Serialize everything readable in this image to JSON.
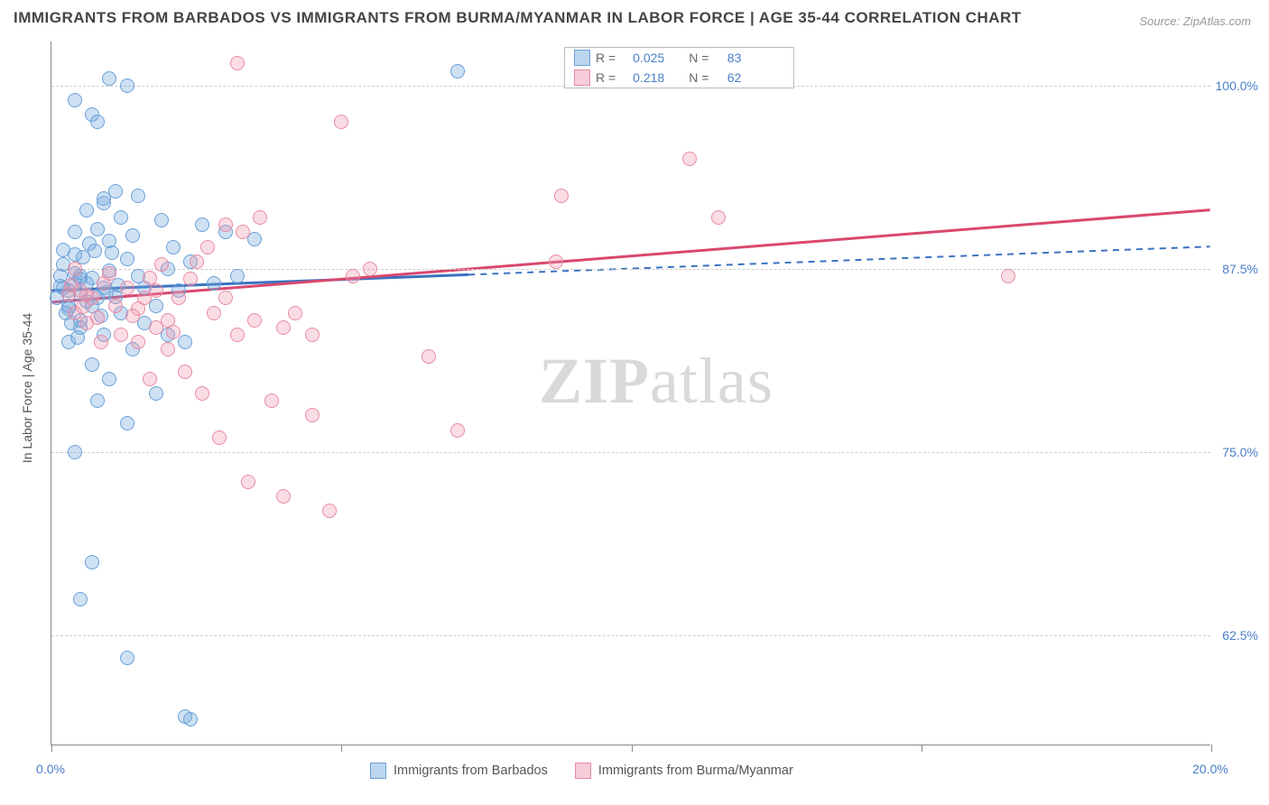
{
  "title": "IMMIGRANTS FROM BARBADOS VS IMMIGRANTS FROM BURMA/MYANMAR IN LABOR FORCE | AGE 35-44 CORRELATION CHART",
  "source": "Source: ZipAtlas.com",
  "y_axis_label": "In Labor Force | Age 35-44",
  "watermark": {
    "part1": "ZIP",
    "part2": "atlas"
  },
  "chart": {
    "type": "scatter",
    "xlim": [
      0,
      20
    ],
    "ylim": [
      55,
      103
    ],
    "x_ticks": [
      0,
      5,
      10,
      15,
      20
    ],
    "x_tick_labels": {
      "0": "0.0%",
      "20": "20.0%"
    },
    "y_ticks": [
      62.5,
      75.0,
      87.5,
      100.0
    ],
    "y_tick_labels": [
      "62.5%",
      "75.0%",
      "87.5%",
      "100.0%"
    ],
    "background_color": "#ffffff",
    "grid_color": "#cccccc",
    "axis_color": "#888888",
    "tick_label_color": "#4a7ec9",
    "marker_radius": 8,
    "marker_stroke_width": 1.5,
    "series": [
      {
        "name": "Immigrants from Barbados",
        "color_fill": "rgba(116,168,222,0.35)",
        "color_stroke": "#6aa0d8",
        "swatch_fill": "#bcd5ee",
        "swatch_stroke": "#6aa0d8",
        "R": "0.025",
        "N": "83",
        "trend": {
          "y_at_x0": 86.0,
          "y_at_x20": 89.0,
          "solid_until_x": 7.2,
          "color": "#3a72c0"
        },
        "points": [
          [
            0.4,
            86.5
          ],
          [
            0.5,
            85.8
          ],
          [
            0.3,
            86.0
          ],
          [
            0.6,
            85.3
          ],
          [
            0.7,
            85.0
          ],
          [
            0.5,
            86.8
          ],
          [
            0.2,
            86.2
          ],
          [
            0.4,
            87.2
          ],
          [
            0.6,
            86.5
          ],
          [
            0.8,
            85.5
          ],
          [
            0.3,
            84.8
          ],
          [
            0.5,
            84.0
          ],
          [
            0.7,
            86.9
          ],
          [
            0.9,
            86.2
          ],
          [
            1.1,
            85.6
          ],
          [
            1.0,
            87.4
          ],
          [
            1.3,
            88.2
          ],
          [
            1.5,
            87.0
          ],
          [
            0.8,
            90.2
          ],
          [
            1.0,
            89.4
          ],
          [
            1.4,
            89.8
          ],
          [
            0.4,
            88.5
          ],
          [
            0.2,
            87.8
          ],
          [
            0.3,
            85.0
          ],
          [
            1.6,
            86.2
          ],
          [
            1.8,
            85.0
          ],
          [
            2.0,
            87.5
          ],
          [
            2.2,
            86.0
          ],
          [
            2.4,
            88.0
          ],
          [
            2.6,
            90.5
          ],
          [
            2.1,
            89.0
          ],
          [
            1.9,
            90.8
          ],
          [
            0.6,
            91.5
          ],
          [
            0.4,
            90.0
          ],
          [
            0.2,
            88.8
          ],
          [
            0.5,
            87.0
          ],
          [
            0.3,
            82.5
          ],
          [
            0.5,
            83.5
          ],
          [
            0.7,
            81.0
          ],
          [
            0.9,
            83.0
          ],
          [
            1.2,
            84.5
          ],
          [
            1.4,
            82.0
          ],
          [
            1.6,
            83.8
          ],
          [
            2.0,
            83.0
          ],
          [
            2.3,
            82.5
          ],
          [
            2.8,
            86.5
          ],
          [
            3.0,
            90.0
          ],
          [
            3.2,
            87.0
          ],
          [
            3.5,
            89.5
          ],
          [
            0.8,
            78.5
          ],
          [
            1.0,
            80.0
          ],
          [
            1.8,
            79.0
          ],
          [
            1.3,
            77.0
          ],
          [
            0.9,
            92.0
          ],
          [
            1.5,
            92.5
          ],
          [
            1.2,
            91.0
          ],
          [
            1.1,
            92.8
          ],
          [
            0.9,
            92.3
          ],
          [
            0.4,
            99.0
          ],
          [
            0.7,
            98.0
          ],
          [
            1.0,
            100.5
          ],
          [
            1.3,
            100.0
          ],
          [
            0.8,
            97.5
          ],
          [
            0.4,
            75.0
          ],
          [
            0.7,
            67.5
          ],
          [
            0.5,
            65.0
          ],
          [
            1.3,
            61.0
          ],
          [
            2.3,
            57.0
          ],
          [
            2.4,
            56.8
          ],
          [
            7.0,
            101.0
          ],
          [
            0.15,
            86.3
          ],
          [
            0.1,
            85.5
          ],
          [
            0.15,
            87.0
          ],
          [
            0.25,
            84.5
          ],
          [
            0.35,
            83.8
          ],
          [
            0.45,
            82.8
          ],
          [
            0.55,
            88.3
          ],
          [
            0.65,
            89.2
          ],
          [
            0.75,
            88.7
          ],
          [
            0.85,
            84.3
          ],
          [
            0.95,
            85.9
          ],
          [
            1.05,
            88.6
          ],
          [
            1.15,
            86.4
          ]
        ]
      },
      {
        "name": "Immigrants from Burma/Myanmar",
        "color_fill": "rgba(238,150,172,0.32)",
        "color_stroke": "#e88aa4",
        "swatch_fill": "#f6cdd8",
        "swatch_stroke": "#e88aa4",
        "R": "0.218",
        "N": "62",
        "trend": {
          "y_at_x0": 85.2,
          "y_at_x20": 91.5,
          "solid_until_x": 20,
          "color": "#d9486e"
        },
        "points": [
          [
            0.5,
            86.0
          ],
          [
            0.7,
            85.5
          ],
          [
            0.9,
            86.5
          ],
          [
            1.1,
            85.0
          ],
          [
            1.3,
            86.2
          ],
          [
            1.5,
            84.8
          ],
          [
            0.4,
            84.5
          ],
          [
            0.6,
            83.8
          ],
          [
            0.8,
            84.2
          ],
          [
            1.6,
            85.5
          ],
          [
            1.8,
            86.0
          ],
          [
            2.0,
            84.0
          ],
          [
            2.2,
            85.5
          ],
          [
            2.4,
            86.8
          ],
          [
            2.8,
            84.5
          ],
          [
            3.0,
            85.5
          ],
          [
            3.2,
            83.0
          ],
          [
            3.5,
            84.0
          ],
          [
            2.5,
            88.0
          ],
          [
            2.7,
            89.0
          ],
          [
            3.0,
            90.5
          ],
          [
            3.3,
            90.0
          ],
          [
            3.6,
            91.0
          ],
          [
            4.0,
            83.5
          ],
          [
            4.2,
            84.5
          ],
          [
            4.5,
            83.0
          ],
          [
            2.0,
            82.0
          ],
          [
            1.8,
            83.5
          ],
          [
            1.5,
            82.5
          ],
          [
            1.2,
            83.0
          ],
          [
            2.3,
            80.5
          ],
          [
            2.6,
            79.0
          ],
          [
            3.8,
            78.5
          ],
          [
            4.5,
            77.5
          ],
          [
            3.4,
            73.0
          ],
          [
            4.0,
            72.0
          ],
          [
            4.8,
            71.0
          ],
          [
            5.5,
            87.5
          ],
          [
            6.5,
            81.5
          ],
          [
            7.0,
            76.5
          ],
          [
            8.7,
            88.0
          ],
          [
            8.8,
            92.5
          ],
          [
            11.0,
            95.0
          ],
          [
            11.5,
            91.0
          ],
          [
            12.5,
            101.0
          ],
          [
            16.5,
            87.0
          ],
          [
            3.2,
            101.5
          ],
          [
            5.0,
            97.5
          ],
          [
            5.2,
            87.0
          ],
          [
            1.0,
            87.2
          ],
          [
            0.3,
            85.8
          ],
          [
            0.4,
            87.5
          ],
          [
            1.7,
            80.0
          ],
          [
            2.9,
            76.0
          ],
          [
            1.4,
            84.3
          ],
          [
            1.7,
            86.9
          ],
          [
            1.9,
            87.8
          ],
          [
            2.1,
            83.2
          ],
          [
            0.6,
            85.7
          ],
          [
            0.35,
            86.4
          ],
          [
            0.55,
            84.9
          ],
          [
            0.85,
            82.5
          ]
        ]
      }
    ]
  },
  "legend_top": {
    "row1_r_label": "R =",
    "row1_n_label": "N =",
    "row2_r_label": "R =",
    "row2_n_label": "N ="
  },
  "legend_bottom": {
    "label1": "Immigrants from Barbados",
    "label2": "Immigrants from Burma/Myanmar"
  }
}
